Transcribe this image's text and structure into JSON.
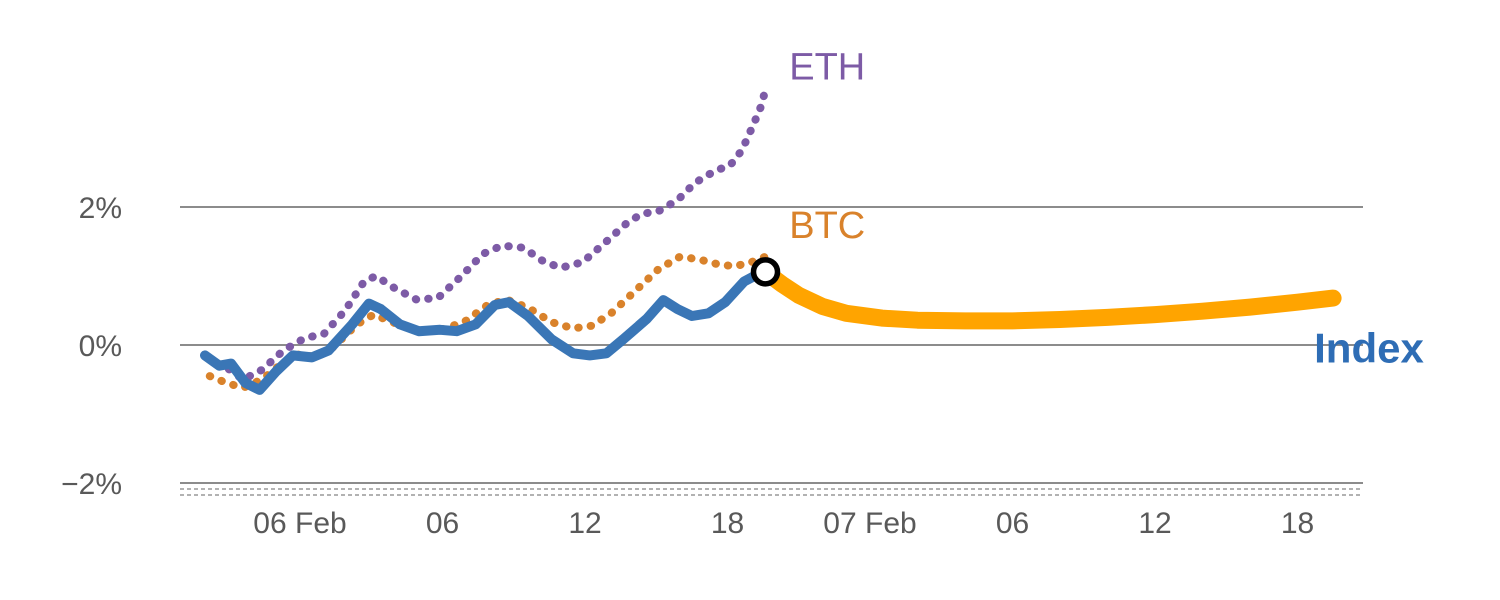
{
  "chart_data": {
    "type": "line",
    "title": "",
    "xlabel": "",
    "ylabel": "",
    "grid": true,
    "legend_position": "inline-annotations",
    "colors": {
      "grid": "#8c8c8c",
      "axis_dashed": "#999999",
      "tick_text": "#595959",
      "index_blue": "#3a76b6",
      "index_label_blue": "#2e6db5",
      "btc_orange": "#d9822b",
      "eth_purple": "#7d5ba6",
      "forecast_amber": "#ffa400",
      "marker_ring": "#000000",
      "marker_fill": "#ffffff"
    },
    "y_axis": {
      "unit": "%",
      "range": [
        -2.6,
        4.3
      ],
      "ticks": [
        {
          "value": 2,
          "label": "2%"
        },
        {
          "value": 0,
          "label": "0%"
        },
        {
          "value": -2,
          "label": "−2%"
        }
      ]
    },
    "x_axis": {
      "unit": "hours from 06 Feb 00:00",
      "ticks": [
        {
          "hour": 0,
          "label": "06 Feb"
        },
        {
          "hour": 6,
          "label": "06"
        },
        {
          "hour": 12,
          "label": "12"
        },
        {
          "hour": 18,
          "label": "18"
        },
        {
          "hour": 24,
          "label": "07 Feb"
        },
        {
          "hour": 30,
          "label": "06"
        },
        {
          "hour": 36,
          "label": "12"
        },
        {
          "hour": 42,
          "label": "18"
        }
      ]
    },
    "series": [
      {
        "name": "ETH",
        "style": "dotted",
        "color": "#7d5ba6",
        "width": 8,
        "points": [
          [
            -3.0,
            -0.35
          ],
          [
            -2.4,
            -0.5
          ],
          [
            -1.6,
            -0.36
          ],
          [
            -0.7,
            -0.08
          ],
          [
            0.2,
            0.1
          ],
          [
            1.0,
            0.16
          ],
          [
            1.9,
            0.5
          ],
          [
            2.7,
            0.92
          ],
          [
            3.2,
            1.0
          ],
          [
            4.0,
            0.82
          ],
          [
            4.9,
            0.66
          ],
          [
            5.8,
            0.68
          ],
          [
            6.8,
            1.0
          ],
          [
            7.7,
            1.32
          ],
          [
            8.5,
            1.44
          ],
          [
            9.4,
            1.41
          ],
          [
            10.3,
            1.2
          ],
          [
            11.0,
            1.12
          ],
          [
            11.9,
            1.2
          ],
          [
            12.9,
            1.5
          ],
          [
            13.8,
            1.78
          ],
          [
            14.4,
            1.9
          ],
          [
            15.1,
            1.94
          ],
          [
            15.9,
            2.1
          ],
          [
            16.6,
            2.34
          ],
          [
            17.1,
            2.45
          ],
          [
            17.6,
            2.54
          ],
          [
            18.1,
            2.6
          ],
          [
            18.6,
            2.82
          ],
          [
            19.1,
            3.2
          ],
          [
            19.4,
            3.45
          ],
          [
            19.6,
            3.7
          ]
        ]
      },
      {
        "name": "BTC",
        "style": "dotted",
        "color": "#d9822b",
        "width": 8,
        "points": [
          [
            -3.8,
            -0.45
          ],
          [
            -3.1,
            -0.55
          ],
          [
            -2.4,
            -0.62
          ],
          [
            -1.6,
            -0.5
          ],
          [
            -0.7,
            -0.25
          ],
          [
            0.0,
            -0.13
          ],
          [
            0.7,
            -0.18
          ],
          [
            1.4,
            -0.03
          ],
          [
            2.4,
            0.3
          ],
          [
            3.1,
            0.44
          ],
          [
            3.9,
            0.33
          ],
          [
            4.9,
            0.2
          ],
          [
            5.9,
            0.22
          ],
          [
            6.9,
            0.33
          ],
          [
            7.9,
            0.58
          ],
          [
            8.7,
            0.66
          ],
          [
            9.6,
            0.54
          ],
          [
            10.6,
            0.33
          ],
          [
            11.5,
            0.24
          ],
          [
            12.3,
            0.28
          ],
          [
            13.1,
            0.46
          ],
          [
            14.1,
            0.78
          ],
          [
            15.1,
            1.1
          ],
          [
            16.0,
            1.28
          ],
          [
            16.8,
            1.24
          ],
          [
            17.6,
            1.17
          ],
          [
            18.3,
            1.14
          ],
          [
            19.0,
            1.2
          ],
          [
            19.6,
            1.28
          ]
        ]
      },
      {
        "name": "Index forecast",
        "style": "solid",
        "color": "#ffa400",
        "width": 17,
        "points": [
          [
            19.6,
            1.06
          ],
          [
            20.3,
            0.88
          ],
          [
            21.0,
            0.72
          ],
          [
            22.0,
            0.56
          ],
          [
            23.0,
            0.46
          ],
          [
            24.5,
            0.39
          ],
          [
            26.0,
            0.36
          ],
          [
            28.0,
            0.35
          ],
          [
            30.0,
            0.35
          ],
          [
            32.0,
            0.37
          ],
          [
            34.0,
            0.4
          ],
          [
            36.0,
            0.44
          ],
          [
            38.0,
            0.49
          ],
          [
            40.0,
            0.55
          ],
          [
            42.0,
            0.62
          ],
          [
            43.5,
            0.68
          ]
        ]
      },
      {
        "name": "Index",
        "style": "solid",
        "color": "#3a76b6",
        "width": 10,
        "points": [
          [
            -4.0,
            -0.15
          ],
          [
            -3.4,
            -0.3
          ],
          [
            -2.9,
            -0.27
          ],
          [
            -2.3,
            -0.55
          ],
          [
            -1.7,
            -0.65
          ],
          [
            -1.0,
            -0.38
          ],
          [
            -0.3,
            -0.15
          ],
          [
            0.5,
            -0.18
          ],
          [
            1.2,
            -0.08
          ],
          [
            2.2,
            0.3
          ],
          [
            2.9,
            0.6
          ],
          [
            3.4,
            0.52
          ],
          [
            4.2,
            0.3
          ],
          [
            5.0,
            0.2
          ],
          [
            5.9,
            0.22
          ],
          [
            6.6,
            0.2
          ],
          [
            7.4,
            0.3
          ],
          [
            8.2,
            0.58
          ],
          [
            8.8,
            0.62
          ],
          [
            9.6,
            0.42
          ],
          [
            10.6,
            0.08
          ],
          [
            11.5,
            -0.12
          ],
          [
            12.2,
            -0.15
          ],
          [
            12.9,
            -0.12
          ],
          [
            13.6,
            0.08
          ],
          [
            14.6,
            0.38
          ],
          [
            15.3,
            0.65
          ],
          [
            15.9,
            0.52
          ],
          [
            16.5,
            0.42
          ],
          [
            17.2,
            0.46
          ],
          [
            17.9,
            0.62
          ],
          [
            18.7,
            0.92
          ],
          [
            19.3,
            1.03
          ],
          [
            19.6,
            1.06
          ]
        ]
      }
    ],
    "marker": {
      "hour": 19.6,
      "value": 1.06,
      "shape": "open-circle",
      "radius": 12,
      "ring_width": 5.5
    },
    "labels": [
      {
        "text": "ETH",
        "color": "#7d5ba6",
        "hour": 20.6,
        "value": 3.85,
        "size": 38,
        "bold": false
      },
      {
        "text": "BTC",
        "color": "#d9822b",
        "hour": 20.6,
        "value": 1.55,
        "size": 38,
        "bold": false
      },
      {
        "text": "Index",
        "color": "#2e6db5",
        "hour": 42.7,
        "value": -0.25,
        "size": 42,
        "bold": true
      }
    ]
  }
}
